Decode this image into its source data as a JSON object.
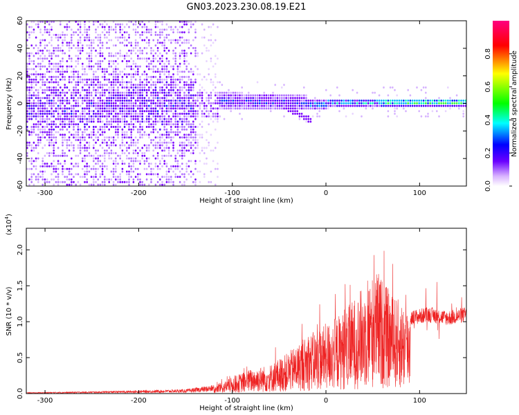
{
  "title": "GN03.2023.230.08.19.E21",
  "chart_data": [
    {
      "type": "heatmap",
      "xlabel": "Height of straight line (km)",
      "ylabel": "Frequency (Hz)",
      "xlim": [
        -320,
        150
      ],
      "ylim": [
        -60,
        60
      ],
      "x_ticks": [
        -300,
        -200,
        -100,
        0,
        100
      ],
      "y_ticks": [
        -60,
        -40,
        -20,
        0,
        20,
        40,
        60
      ],
      "colorbar": {
        "label": "Normalized spectral amplitude",
        "range": [
          0,
          1
        ],
        "ticks": [
          "0.0",
          "0.2",
          "0.4",
          "0.6",
          "0.8"
        ],
        "colors": [
          "#ffffff",
          "#6a00ff",
          "#0000ff",
          "#00ffff",
          "#00ff00",
          "#ffff00",
          "#ff0000",
          "#ff0080"
        ]
      },
      "grid": false
    },
    {
      "type": "line",
      "xlabel": "Height of straight line (km)",
      "ylabel": "SNR (10 * v/v)",
      "y_scale_label": "(x10",
      "y_scale_exp": "4",
      "y_scale_close": ")",
      "xlim": [
        -320,
        150
      ],
      "ylim": [
        0,
        2.3
      ],
      "x_ticks": [
        -300,
        -200,
        -100,
        0,
        100
      ],
      "y_ticks": [
        "0.0",
        "0.5",
        "1.0",
        "1.5",
        "2.0"
      ],
      "line_color": "#ee2222",
      "envelope_points": [
        {
          "x": -320,
          "y": 0.01
        },
        {
          "x": -250,
          "y": 0.02
        },
        {
          "x": -200,
          "y": 0.03
        },
        {
          "x": -150,
          "y": 0.04
        },
        {
          "x": -120,
          "y": 0.08
        },
        {
          "x": -100,
          "y": 0.2
        },
        {
          "x": -80,
          "y": 0.3
        },
        {
          "x": -60,
          "y": 0.35
        },
        {
          "x": -40,
          "y": 0.5
        },
        {
          "x": -20,
          "y": 0.7
        },
        {
          "x": 0,
          "y": 0.85
        },
        {
          "x": 20,
          "y": 1.0
        },
        {
          "x": 40,
          "y": 1.3
        },
        {
          "x": 55,
          "y": 1.5
        },
        {
          "x": 70,
          "y": 1.2
        },
        {
          "x": 90,
          "y": 1.05
        },
        {
          "x": 110,
          "y": 1.1
        },
        {
          "x": 130,
          "y": 1.05
        },
        {
          "x": 150,
          "y": 1.1
        }
      ]
    }
  ]
}
